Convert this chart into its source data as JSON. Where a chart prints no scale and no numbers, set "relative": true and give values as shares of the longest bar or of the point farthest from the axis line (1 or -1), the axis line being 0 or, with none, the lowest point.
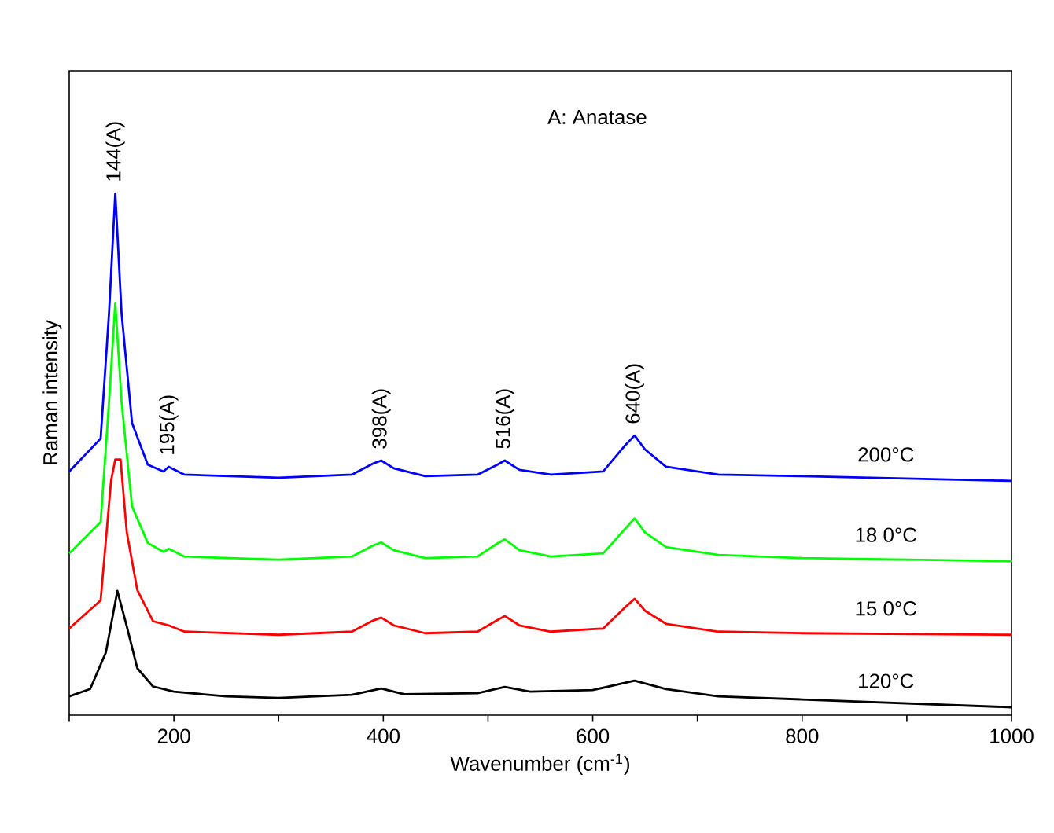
{
  "chart_data": {
    "type": "line",
    "relative": true,
    "xlabel": "Wavenumber (cm$^{-1}$)",
    "ylabel": "Raman intensity",
    "xlim": [
      100,
      1000
    ],
    "xticks": [
      {
        "value": 100,
        "label": null
      },
      200,
      {
        "value": 300,
        "label": null
      },
      400,
      {
        "value": 500,
        "label": null
      },
      600,
      {
        "value": 700,
        "label": null
      },
      800,
      {
        "value": 900,
        "label": null
      },
      1000
    ],
    "tick_labels": "x",
    "grid": false,
    "marker": "none",
    "line_style": "solid",
    "annotations": [
      "A: Anatase",
      {
        "text": "144(A)",
        "x": 144,
        "y": 1.0
      },
      {
        "text": "195(A)",
        "x": 195,
        "y": 0.476
      },
      {
        "text": "398(A)",
        "x": 398,
        "y": 0.488
      },
      {
        "text": "516(A)",
        "x": 516,
        "y": 0.488
      },
      {
        "text": "640(A)",
        "x": 640,
        "y": 0.536
      }
    ],
    "series": [
      {
        "name": "200°C",
        "color": "#0000ff",
        "x": [
          100,
          130,
          138,
          144,
          150,
          160,
          175,
          190,
          195,
          210,
          300,
          370,
          390,
          398,
          410,
          440,
          490,
          508,
          516,
          530,
          560,
          610,
          630,
          640,
          650,
          670,
          720,
          800,
          1000
        ],
        "values": [
          0.467,
          0.53,
          0.77,
          1.0,
          0.77,
          0.56,
          0.48,
          0.467,
          0.476,
          0.461,
          0.455,
          0.461,
          0.482,
          0.488,
          0.473,
          0.458,
          0.461,
          0.479,
          0.488,
          0.47,
          0.461,
          0.467,
          0.515,
          0.536,
          0.509,
          0.476,
          0.461,
          0.458,
          0.449
        ]
      },
      {
        "name": "18 0°C",
        "color": "#00ff00",
        "x": [
          100,
          130,
          138,
          144,
          150,
          160,
          175,
          190,
          195,
          210,
          300,
          370,
          390,
          398,
          410,
          440,
          490,
          508,
          516,
          530,
          560,
          610,
          630,
          640,
          650,
          670,
          720,
          800,
          1000
        ],
        "values": [
          0.31,
          0.37,
          0.6,
          0.79,
          0.6,
          0.4,
          0.33,
          0.313,
          0.319,
          0.304,
          0.298,
          0.304,
          0.325,
          0.331,
          0.316,
          0.301,
          0.304,
          0.328,
          0.337,
          0.316,
          0.304,
          0.31,
          0.355,
          0.377,
          0.35,
          0.322,
          0.307,
          0.301,
          0.295
        ]
      },
      {
        "name": "15 0°C",
        "color": "#ff0000",
        "x": [
          100,
          130,
          140,
          144,
          149,
          155,
          165,
          180,
          195,
          210,
          300,
          370,
          390,
          398,
          410,
          440,
          490,
          508,
          516,
          530,
          560,
          610,
          630,
          640,
          650,
          670,
          720,
          800,
          1000
        ],
        "values": [
          0.166,
          0.22,
          0.45,
          0.49,
          0.49,
          0.35,
          0.24,
          0.18,
          0.172,
          0.16,
          0.154,
          0.16,
          0.181,
          0.187,
          0.172,
          0.157,
          0.16,
          0.181,
          0.19,
          0.172,
          0.16,
          0.166,
          0.205,
          0.223,
          0.2,
          0.175,
          0.16,
          0.157,
          0.154
        ]
      },
      {
        "name": "120°C",
        "color": "#000000",
        "x": [
          100,
          120,
          135,
          146,
          155,
          165,
          180,
          200,
          250,
          300,
          370,
          398,
          420,
          490,
          516,
          540,
          600,
          640,
          670,
          720,
          800,
          1000
        ],
        "values": [
          0.036,
          0.05,
          0.12,
          0.238,
          0.17,
          0.09,
          0.055,
          0.045,
          0.036,
          0.033,
          0.039,
          0.051,
          0.04,
          0.042,
          0.054,
          0.045,
          0.048,
          0.066,
          0.05,
          0.036,
          0.03,
          0.015
        ]
      }
    ]
  }
}
